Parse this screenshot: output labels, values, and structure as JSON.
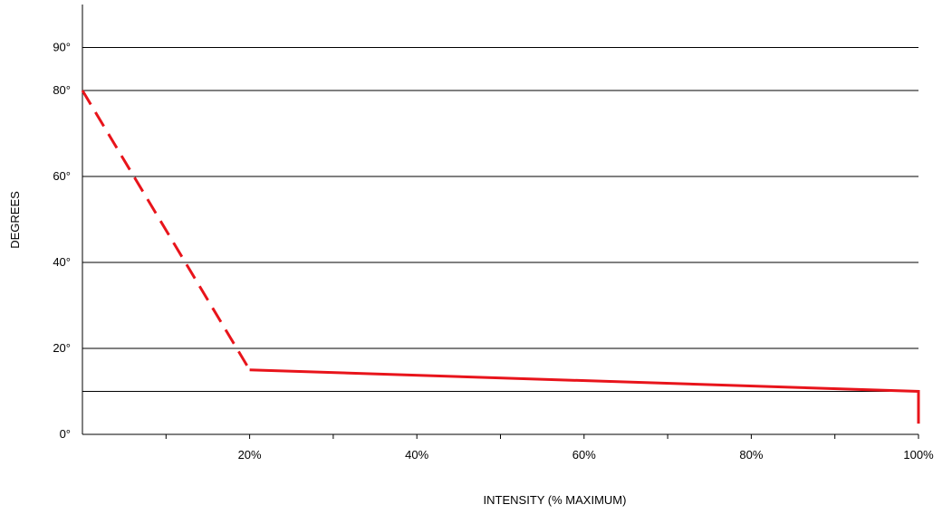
{
  "chart_data": {
    "type": "line",
    "title": "",
    "xlabel": "INTENSITY (% MAXIMUM)",
    "ylabel": "DEGREES",
    "xlim": [
      0,
      100
    ],
    "ylim": [
      0,
      100
    ],
    "x_tick_labels": [
      {
        "value": 20,
        "label": "20%"
      },
      {
        "value": 40,
        "label": "40%"
      },
      {
        "value": 60,
        "label": "60%"
      },
      {
        "value": 80,
        "label": "80%"
      },
      {
        "value": 100,
        "label": "100%"
      }
    ],
    "x_minor_ticks": [
      10,
      30,
      50,
      70,
      90
    ],
    "y_tick_labels": [
      {
        "value": 0,
        "label": "0°"
      },
      {
        "value": 20,
        "label": "20°"
      },
      {
        "value": 40,
        "label": "40°"
      },
      {
        "value": 60,
        "label": "60°"
      },
      {
        "value": 80,
        "label": "80°"
      },
      {
        "value": 90,
        "label": "90°"
      }
    ],
    "gridlines_y": [
      10,
      20,
      40,
      60,
      80,
      90
    ],
    "grid": true,
    "series": [
      {
        "style": "dashed",
        "color": "#e8141b",
        "points": [
          [
            0,
            80
          ],
          [
            20,
            15
          ]
        ]
      },
      {
        "style": "solid",
        "color": "#e8141b",
        "points": [
          [
            20,
            15
          ],
          [
            100,
            10
          ],
          [
            100,
            2.5
          ]
        ]
      }
    ]
  }
}
